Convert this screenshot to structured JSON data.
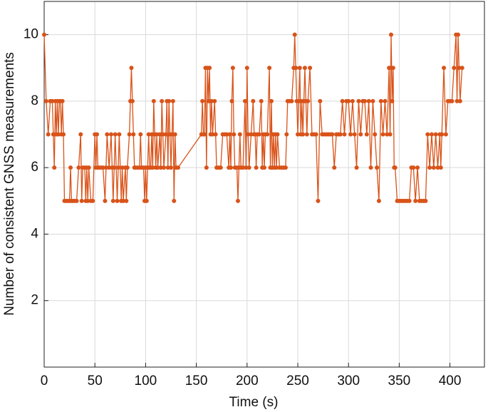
{
  "chart_data": {
    "type": "line",
    "x_label": "Time (s)",
    "y_label": "Number of consistent GNSS measurements",
    "color": "#d95319",
    "grid": true,
    "xlim": [
      0,
      434
    ],
    "ylim": [
      0,
      11
    ],
    "xticks": [
      0,
      50,
      100,
      150,
      200,
      250,
      300,
      350,
      400
    ],
    "yticks": [
      2,
      4,
      6,
      8,
      10
    ],
    "x": [
      0,
      2,
      4,
      6,
      8,
      9,
      10,
      11,
      12,
      13,
      14,
      15,
      16,
      17,
      18,
      19,
      20,
      22,
      24,
      25,
      26,
      27,
      28,
      30,
      32,
      34,
      36,
      37,
      38,
      40,
      41,
      42,
      43,
      44,
      46,
      48,
      50,
      51,
      52,
      53,
      54,
      56,
      58,
      60,
      61,
      62,
      64,
      66,
      67,
      68,
      69,
      70,
      72,
      73,
      74,
      76,
      77,
      78,
      80,
      81,
      82,
      84,
      85,
      86,
      87,
      88,
      89,
      90,
      92,
      94,
      95,
      96,
      98,
      99,
      100,
      101,
      102,
      103,
      104,
      105,
      106,
      107,
      108,
      109,
      110,
      111,
      112,
      114,
      115,
      116,
      117,
      118,
      120,
      121,
      122,
      123,
      124,
      125,
      126,
      127,
      128,
      129,
      130,
      132,
      155,
      156,
      157,
      158,
      159,
      160,
      161,
      162,
      163,
      164,
      165,
      166,
      168,
      169,
      170,
      172,
      174,
      176,
      178,
      180,
      182,
      183,
      184,
      185,
      186,
      187,
      188,
      190,
      191,
      192,
      193,
      194,
      196,
      198,
      199,
      200,
      201,
      202,
      204,
      206,
      207,
      208,
      209,
      210,
      212,
      214,
      215,
      216,
      217,
      218,
      220,
      222,
      223,
      224,
      225,
      226,
      227,
      228,
      229,
      230,
      232,
      234,
      236,
      238,
      239,
      240,
      242,
      244,
      246,
      247,
      248,
      249,
      250,
      251,
      252,
      253,
      254,
      255,
      256,
      257,
      258,
      259,
      260,
      262,
      264,
      266,
      268,
      270,
      272,
      274,
      276,
      278,
      280,
      282,
      284,
      286,
      288,
      290,
      292,
      294,
      296,
      298,
      300,
      302,
      304,
      306,
      308,
      310,
      312,
      314,
      316,
      318,
      320,
      322,
      324,
      326,
      328,
      330,
      332,
      334,
      336,
      338,
      340,
      341,
      342,
      343,
      344,
      345,
      346,
      348,
      350,
      352,
      354,
      356,
      358,
      360,
      362,
      364,
      366,
      368,
      370,
      372,
      374,
      376,
      378,
      380,
      382,
      384,
      386,
      388,
      390,
      391,
      392,
      394,
      396,
      398,
      400,
      402,
      404,
      406,
      407,
      408,
      409,
      410,
      412
    ],
    "values": [
      10,
      8,
      7,
      8,
      8,
      7,
      6,
      8,
      7,
      8,
      7,
      8,
      8,
      7,
      8,
      7,
      5,
      5,
      5,
      5,
      6,
      5,
      5,
      5,
      5,
      6,
      7,
      5,
      6,
      6,
      5,
      6,
      5,
      6,
      5,
      5,
      7,
      6,
      7,
      6,
      6,
      6,
      6,
      5,
      6,
      7,
      6,
      7,
      6,
      5,
      6,
      7,
      5,
      6,
      7,
      5,
      6,
      5,
      6,
      5,
      6,
      7,
      8,
      9,
      8,
      7,
      6,
      6,
      6,
      6,
      7,
      6,
      6,
      5,
      6,
      5,
      6,
      7,
      6,
      6,
      7,
      6,
      8,
      7,
      6,
      7,
      6,
      7,
      6,
      8,
      7,
      6,
      7,
      8,
      6,
      8,
      7,
      6,
      7,
      8,
      5,
      7,
      6,
      6,
      7,
      8,
      7,
      7,
      9,
      6,
      9,
      8,
      9,
      7,
      8,
      7,
      8,
      7,
      6,
      6,
      6,
      7,
      7,
      7,
      6,
      7,
      6,
      8,
      9,
      7,
      6,
      6,
      5,
      6,
      7,
      6,
      6,
      8,
      6,
      9,
      7,
      6,
      7,
      8,
      7,
      7,
      6,
      7,
      7,
      8,
      6,
      7,
      6,
      7,
      7,
      9,
      6,
      8,
      6,
      7,
      6,
      7,
      6,
      7,
      6,
      6,
      6,
      6,
      7,
      8,
      8,
      8,
      9,
      10,
      9,
      8,
      7,
      8,
      9,
      7,
      8,
      7,
      8,
      9,
      8,
      7,
      8,
      9,
      7,
      7,
      7,
      5,
      8,
      7,
      7,
      7,
      7,
      7,
      7,
      6,
      7,
      7,
      7,
      8,
      7,
      8,
      8,
      7,
      8,
      7,
      6,
      8,
      7,
      8,
      8,
      7,
      8,
      6,
      8,
      7,
      6,
      5,
      8,
      7,
      8,
      7,
      9,
      7,
      10,
      8,
      9,
      6,
      6,
      5,
      5,
      5,
      5,
      5,
      5,
      5,
      6,
      6,
      5,
      6,
      5,
      5,
      5,
      5,
      7,
      6,
      7,
      6,
      7,
      6,
      7,
      6,
      7,
      9,
      7,
      8,
      8,
      8,
      9,
      10,
      8,
      10,
      9,
      8,
      9
    ]
  }
}
